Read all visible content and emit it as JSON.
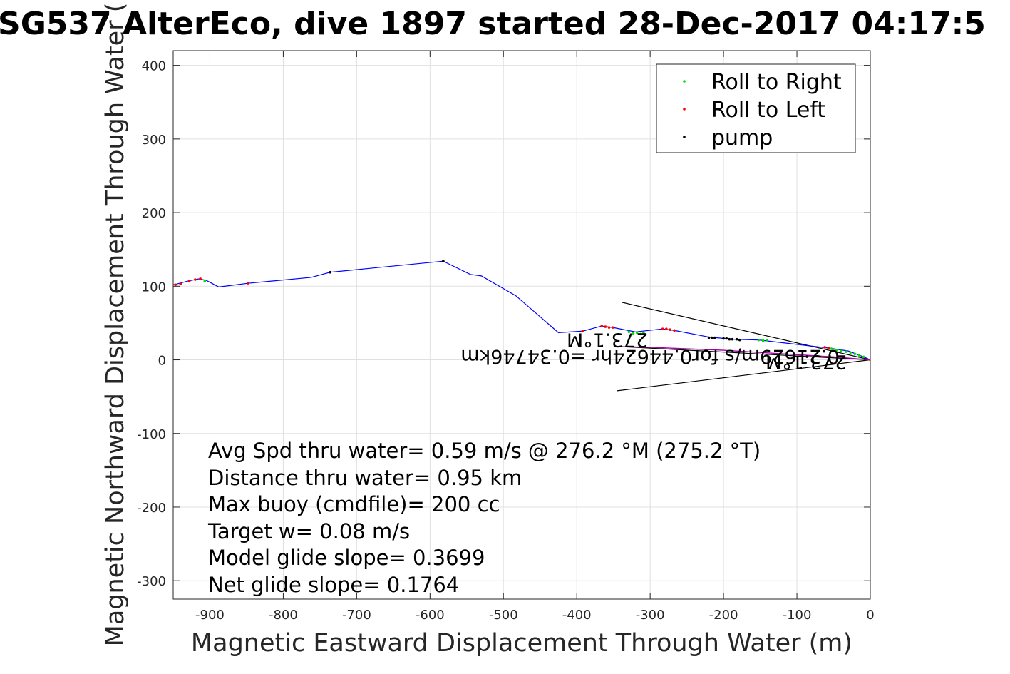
{
  "chart_data": {
    "type": "scatter",
    "title": "SG537 AlterEco, dive 1897 started 28-Dec-2017 04:17:5",
    "xlabel": "Magnetic Eastward Displacement Through Water (m)",
    "ylabel": "Magnetic Northward Displacement Through Water (",
    "xlim": [
      -950,
      0
    ],
    "ylim": [
      -325,
      420
    ],
    "x_ticks": [
      -900,
      -800,
      -700,
      -600,
      -500,
      -400,
      -300,
      -200,
      -100,
      0
    ],
    "y_ticks": [
      -300,
      -200,
      -100,
      0,
      100,
      200,
      300,
      400
    ],
    "grid": true,
    "legend_position": "top-right",
    "colors": {
      "track": "#0000ff",
      "roll_right": "#00dd00",
      "roll_left": "#ff0000",
      "pump": "#000000",
      "mixed": "#aa00aa",
      "axes": "#262626",
      "grid": "#e0e0e0"
    },
    "series": [
      {
        "name": "Roll to Right",
        "color": "#00dd00",
        "x": [
          -907,
          -329,
          -323,
          -318,
          -313,
          -309,
          -152,
          -146,
          -141,
          -53,
          -46,
          -40,
          -33,
          -27,
          -21,
          -15,
          -9
        ],
        "y": [
          107,
          38,
          36,
          37,
          35,
          37,
          27,
          26,
          27,
          15,
          13,
          12,
          11,
          10,
          8,
          6,
          4
        ]
      },
      {
        "name": "Roll to Left",
        "color": "#ff0000",
        "x": [
          -947,
          -940,
          -928,
          -920,
          -913,
          -848,
          -392,
          -366,
          -361,
          -356,
          -351,
          -283,
          -278,
          -273,
          -267,
          -62,
          -57,
          0
        ],
        "y": [
          102,
          103,
          107,
          109,
          110,
          104,
          39,
          46,
          45,
          44,
          44,
          42,
          42,
          41,
          40,
          17,
          16,
          0
        ]
      },
      {
        "name": "pump",
        "color": "#000000",
        "x": [
          -736,
          -582,
          -220,
          -216,
          -212,
          -200,
          -196,
          -192,
          -188,
          -182,
          -178
        ],
        "y": [
          119,
          134,
          30,
          30,
          30,
          29,
          29,
          28,
          28,
          28,
          27
        ]
      }
    ],
    "track": {
      "color": "#0000ff",
      "x": [
        -950,
        -945,
        -930,
        -915,
        -905,
        -888,
        -848,
        -762,
        -736,
        -582,
        -545,
        -530,
        -483,
        -425,
        -392,
        -366,
        -351,
        -320,
        -283,
        -267,
        -220,
        -188,
        -152,
        -57,
        -30,
        -9,
        0
      ],
      "y": [
        102,
        103,
        107,
        110,
        108,
        99,
        104,
        112,
        119,
        134,
        116,
        114,
        87,
        37,
        39,
        46,
        44,
        38,
        42,
        40,
        31,
        28,
        27,
        16,
        12,
        4,
        0
      ]
    },
    "current_track": {
      "color": "#aa00aa",
      "x": [
        -341,
        -300,
        -250,
        -200,
        -150,
        -100,
        -50,
        0
      ],
      "y": [
        18,
        17,
        15,
        13,
        10,
        7,
        4,
        0
      ]
    },
    "heading_lines": [
      {
        "x": [
          0,
          -338
        ],
        "y": [
          0,
          78
        ]
      },
      {
        "x": [
          0,
          -345
        ],
        "y": [
          0,
          -42
        ]
      },
      {
        "x": [
          0,
          -341
        ],
        "y": [
          0,
          18
        ]
      }
    ],
    "annotations": [
      {
        "text": "0.21629m/s for0.44624hr =0.34746km",
        "x": -42,
        "y": 13,
        "rotation": 180
      },
      {
        "text": "273.1°M",
        "x": -32,
        "y": 6,
        "rotation": 180
      },
      {
        "text": "273.1°M",
        "x": -303,
        "y": 36,
        "rotation": 180
      }
    ],
    "info_lines": [
      "Avg Spd thru water=  0.59 m/s @ 276.2 °M (275.2 °T)",
      "Distance thru water=  0.95 km",
      "Max buoy (cmdfile)= 200 cc",
      "Target w= 0.08 m/s",
      "Model glide slope= 0.3699",
      "Net glide slope= 0.1764"
    ]
  }
}
